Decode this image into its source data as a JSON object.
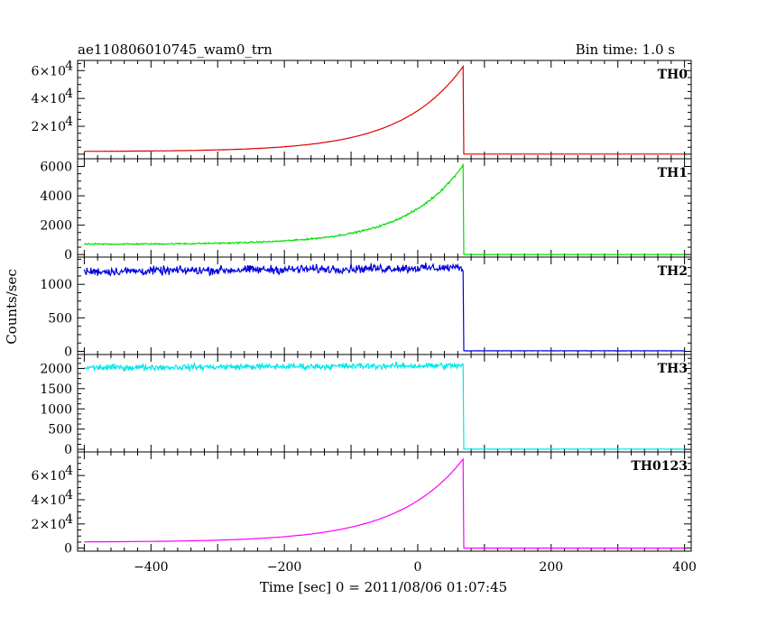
{
  "title_left": "ae110806010745_wam0_trn",
  "title_right": "Bin time: 1.0 s",
  "xlabel": "Time [sec] 0 = 2011/08/06 01:07:45",
  "ylabel": "Counts/sec",
  "chart_data": {
    "type": "line",
    "x_range": [
      -510,
      410
    ],
    "x_ticks": [
      -400,
      -200,
      0,
      200,
      400
    ],
    "x_tick_labels": [
      "−400",
      "−200",
      "0",
      "200",
      "400"
    ],
    "panels": [
      {
        "name": "TH0",
        "color": "#e00000",
        "y_range": [
          -2000,
          66000
        ],
        "y_ticks": [
          0,
          20000,
          40000,
          60000
        ],
        "y_tick_labels": [
          "",
          "2×10",
          "4×10",
          "6×10"
        ],
        "y_tick_sups": [
          "",
          "4",
          "4",
          "4"
        ],
        "model": {
          "kind": "exp",
          "baseline": 1900,
          "amplitude": 61000,
          "tau": 93,
          "noise": 120,
          "drop_time": 68,
          "post_value": 50
        }
      },
      {
        "name": "TH1",
        "color": "#00e000",
        "y_range": [
          -50,
          6400
        ],
        "y_ticks": [
          0,
          2000,
          4000,
          6000
        ],
        "y_tick_labels": [
          "0",
          "2000",
          "4000",
          "6000"
        ],
        "model": {
          "kind": "exp",
          "baseline": 700,
          "amplitude": 5400,
          "tau": 85,
          "noise": 70,
          "drop_time": 68,
          "post_value": 5
        }
      },
      {
        "name": "TH2",
        "color": "#0000e0",
        "y_range": [
          -20,
          1380
        ],
        "y_ticks": [
          0,
          500,
          1000
        ],
        "y_tick_labels": [
          "0",
          "500",
          "1000"
        ],
        "model": {
          "kind": "flat",
          "baseline": 1190,
          "slope_end": 60,
          "noise": 55,
          "drop_time": 68,
          "post_value": 8
        }
      },
      {
        "name": "TH3",
        "color": "#00e8e8",
        "y_range": [
          -20,
          2300
        ],
        "y_ticks": [
          0,
          500,
          1000,
          1500,
          2000
        ],
        "y_tick_labels": [
          "0",
          "500",
          "1000",
          "1500",
          "2000"
        ],
        "model": {
          "kind": "flat",
          "baseline": 2020,
          "slope_end": 50,
          "noise": 65,
          "drop_time": 68,
          "post_value": 5
        }
      },
      {
        "name": "TH0123",
        "color": "#ff00ff",
        "y_range": [
          -1000,
          78000
        ],
        "y_ticks": [
          0,
          20000,
          40000,
          60000
        ],
        "y_tick_labels": [
          "0",
          "2×10",
          "4×10",
          "6×10"
        ],
        "y_tick_sups": [
          "",
          "4",
          "4",
          "4"
        ],
        "model": {
          "kind": "exp",
          "baseline": 5000,
          "amplitude": 68500,
          "tau": 98,
          "noise": 150,
          "drop_time": 68,
          "post_value": 60
        }
      }
    ]
  }
}
